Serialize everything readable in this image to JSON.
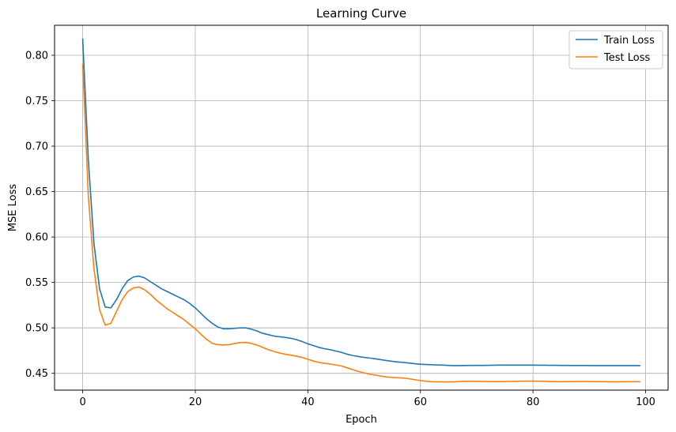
{
  "chart_data": {
    "type": "line",
    "title": "Learning Curve",
    "xlabel": "Epoch",
    "ylabel": "MSE Loss",
    "xlim": [
      -5,
      104
    ],
    "ylim": [
      0.4315,
      0.833
    ],
    "xticks": [
      0,
      20,
      40,
      60,
      80,
      100
    ],
    "xtick_labels": [
      "0",
      "20",
      "40",
      "60",
      "80",
      "100"
    ],
    "yticks": [
      0.45,
      0.5,
      0.55,
      0.6,
      0.65,
      0.7,
      0.75,
      0.8
    ],
    "ytick_labels": [
      "0.45",
      "0.50",
      "0.55",
      "0.60",
      "0.65",
      "0.70",
      "0.75",
      "0.80"
    ],
    "grid": true,
    "legend_position": "top-right",
    "x": [
      0,
      1,
      2,
      3,
      4,
      5,
      6,
      7,
      8,
      9,
      10,
      11,
      12,
      13,
      14,
      15,
      16,
      17,
      18,
      19,
      20,
      21,
      22,
      23,
      24,
      25,
      26,
      27,
      28,
      29,
      30,
      31,
      32,
      33,
      34,
      35,
      36,
      37,
      38,
      39,
      40,
      41,
      42,
      43,
      44,
      45,
      46,
      47,
      48,
      49,
      50,
      51,
      52,
      53,
      54,
      55,
      56,
      57,
      58,
      59,
      60,
      61,
      62,
      63,
      64,
      65,
      66,
      67,
      68,
      69,
      70,
      71,
      72,
      73,
      74,
      75,
      76,
      77,
      78,
      79,
      80,
      81,
      82,
      83,
      84,
      85,
      86,
      87,
      88,
      89,
      90,
      91,
      92,
      93,
      94,
      95,
      96,
      97,
      98,
      99
    ],
    "series": [
      {
        "name": "Train Loss",
        "color": "#1f77b4",
        "values": [
          0.818,
          0.685,
          0.593,
          0.543,
          0.523,
          0.522,
          0.531,
          0.543,
          0.552,
          0.556,
          0.557,
          0.555,
          0.551,
          0.547,
          0.543,
          0.54,
          0.537,
          0.534,
          0.531,
          0.527,
          0.522,
          0.516,
          0.51,
          0.505,
          0.501,
          0.499,
          0.499,
          0.4995,
          0.5,
          0.5,
          0.4985,
          0.4965,
          0.494,
          0.4925,
          0.491,
          0.4902,
          0.4895,
          0.4885,
          0.487,
          0.485,
          0.4825,
          0.4805,
          0.4785,
          0.477,
          0.476,
          0.4745,
          0.473,
          0.471,
          0.4695,
          0.4685,
          0.4675,
          0.4668,
          0.466,
          0.465,
          0.464,
          0.4632,
          0.4625,
          0.462,
          0.4613,
          0.4606,
          0.46,
          0.4597,
          0.4595,
          0.4592,
          0.459,
          0.4587,
          0.4585,
          0.4585,
          0.4586,
          0.4587,
          0.4587,
          0.4587,
          0.4588,
          0.4589,
          0.459,
          0.459,
          0.459,
          0.459,
          0.459,
          0.459,
          0.459,
          0.4589,
          0.4589,
          0.4588,
          0.4588,
          0.4587,
          0.4587,
          0.4586,
          0.4586,
          0.4586,
          0.4586,
          0.4585,
          0.4585,
          0.4585,
          0.4585,
          0.4585,
          0.4585,
          0.4585,
          0.4585,
          0.4585
        ]
      },
      {
        "name": "Test Loss",
        "color": "#ff7f0e",
        "values": [
          0.79,
          0.645,
          0.565,
          0.52,
          0.503,
          0.505,
          0.518,
          0.531,
          0.54,
          0.544,
          0.545,
          0.542,
          0.537,
          0.531,
          0.526,
          0.521,
          0.517,
          0.513,
          0.509,
          0.504,
          0.499,
          0.493,
          0.4875,
          0.483,
          0.4815,
          0.4812,
          0.4815,
          0.4828,
          0.4838,
          0.484,
          0.4828,
          0.481,
          0.4785,
          0.476,
          0.474,
          0.4723,
          0.471,
          0.47,
          0.4688,
          0.4675,
          0.4655,
          0.4635,
          0.462,
          0.461,
          0.4602,
          0.4592,
          0.458,
          0.456,
          0.454,
          0.452,
          0.4505,
          0.449,
          0.448,
          0.447,
          0.446,
          0.4455,
          0.4452,
          0.4448,
          0.444,
          0.443,
          0.442,
          0.4413,
          0.4408,
          0.4407,
          0.4406,
          0.4406,
          0.4407,
          0.441,
          0.4412,
          0.4413,
          0.4412,
          0.4411,
          0.441,
          0.4409,
          0.4409,
          0.441,
          0.4411,
          0.4412,
          0.4413,
          0.4414,
          0.4414,
          0.4413,
          0.4412,
          0.441,
          0.4409,
          0.4408,
          0.4409,
          0.441,
          0.441,
          0.441,
          0.441,
          0.4409,
          0.4408,
          0.4408,
          0.4407,
          0.4407,
          0.4407,
          0.4408,
          0.4408,
          0.4408
        ]
      }
    ]
  }
}
